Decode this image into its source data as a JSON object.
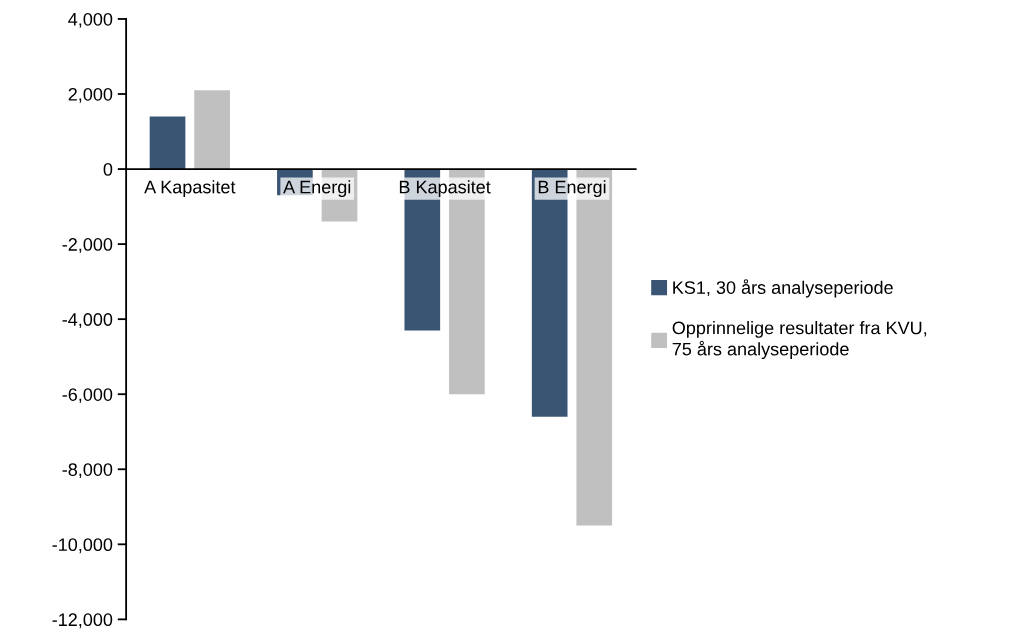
{
  "chart_data": {
    "type": "bar",
    "categories": [
      "A Kapasitet",
      "A Energi",
      "B Kapasitet",
      "B Energi"
    ],
    "series": [
      {
        "name": "KS1, 30 års analyseperiode",
        "color": "#3a5573",
        "values": [
          1400,
          -700,
          -4300,
          -6600
        ]
      },
      {
        "name": "Opprinnelige resultater fra KVU,\n75 års analyseperiode",
        "color": "#c0c0c0",
        "values": [
          2100,
          -1400,
          -6000,
          -9500
        ]
      }
    ],
    "ylim": [
      -12000,
      4000
    ],
    "yticks": [
      {
        "value": -12000,
        "label": "-12,000"
      },
      {
        "value": -10000,
        "label": "-10,000"
      },
      {
        "value": -8000,
        "label": "-8,000"
      },
      {
        "value": -6000,
        "label": "-6,000"
      },
      {
        "value": -4000,
        "label": "-4,000"
      },
      {
        "value": -2000,
        "label": "-2,000"
      },
      0,
      {
        "value": 2000,
        "label": "2,000"
      },
      {
        "value": 4000,
        "label": "4,000"
      }
    ],
    "grid": false,
    "legend": "right"
  }
}
